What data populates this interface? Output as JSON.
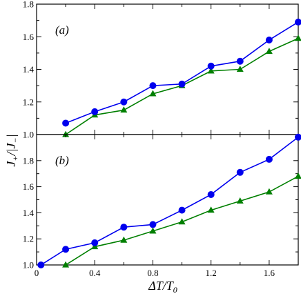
{
  "chart_data": {
    "type": "line",
    "xlabel": "ΔT/T",
    "xlabel_sub": "0",
    "ylabel": "J",
    "ylabel_sub": "+",
    "ylabel_rest": "/|J",
    "ylabel_sub2": "−",
    "ylabel_end": "|",
    "x_ticks": [
      "0",
      "0.4",
      "0.8",
      "1.2",
      "1.6"
    ],
    "xlim": [
      0,
      1.8
    ],
    "grid": false,
    "legend": "none",
    "colors": {
      "blue": "#0000ee",
      "green": "#007f00"
    },
    "panels": [
      {
        "label": "(a)",
        "ylim": [
          1.0,
          1.8
        ],
        "y_ticks": [
          "1.0",
          "1.2",
          "1.4",
          "1.6",
          "1.8"
        ],
        "series": [
          {
            "marker": "circle",
            "color": "#0000ee",
            "x": [
              0.2,
              0.4,
              0.6,
              0.8,
              1.0,
              1.2,
              1.4,
              1.6,
              1.8
            ],
            "values": [
              1.07,
              1.14,
              1.2,
              1.3,
              1.31,
              1.42,
              1.45,
              1.58,
              1.69
            ]
          },
          {
            "marker": "triangle",
            "color": "#007f00",
            "x": [
              0.2,
              0.4,
              0.6,
              0.8,
              1.0,
              1.2,
              1.4,
              1.6,
              1.8
            ],
            "values": [
              1.0,
              1.12,
              1.15,
              1.25,
              1.3,
              1.39,
              1.4,
              1.51,
              1.59
            ]
          }
        ]
      },
      {
        "label": "(b)",
        "ylim": [
          1.0,
          2.0
        ],
        "y_ticks": [
          "1.0",
          "1.2",
          "1.4",
          "1.6",
          "1.8"
        ],
        "series": [
          {
            "marker": "circle",
            "color": "#0000ee",
            "x": [
              0.03,
              0.2,
              0.4,
              0.6,
              0.8,
              1.0,
              1.2,
              1.4,
              1.6,
              1.8
            ],
            "values": [
              1.0,
              1.12,
              1.17,
              1.29,
              1.31,
              1.42,
              1.54,
              1.71,
              1.81,
              1.98
            ]
          },
          {
            "marker": "triangle",
            "color": "#007f00",
            "x": [
              0.2,
              0.4,
              0.6,
              0.8,
              1.0,
              1.2,
              1.4,
              1.6,
              1.8
            ],
            "values": [
              1.0,
              1.14,
              1.19,
              1.26,
              1.33,
              1.42,
              1.49,
              1.56,
              1.68
            ]
          }
        ]
      }
    ]
  }
}
